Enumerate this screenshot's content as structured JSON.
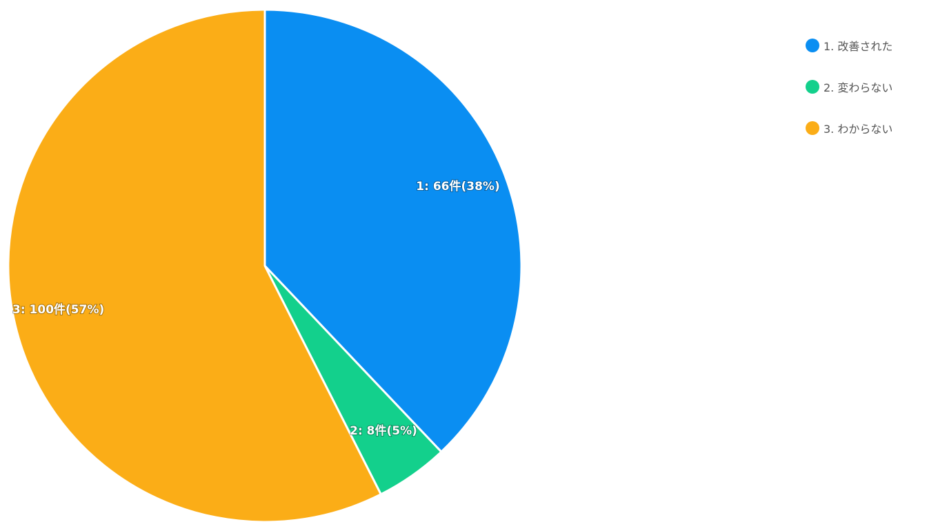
{
  "chart_data": {
    "type": "pie",
    "title": "",
    "start_angle_deg": 0,
    "direction": "clockwise",
    "legend_position": "top-right",
    "slices": [
      {
        "name": "1. 改善された",
        "value": 66,
        "percent": 38,
        "data_label": "1: 66件(38%)",
        "color": "#0a8ef2"
      },
      {
        "name": "2. 変わらない",
        "value": 8,
        "percent": 5,
        "data_label": "2: 8件(5%)",
        "color": "#13d08c"
      },
      {
        "name": "3. わからない",
        "value": 100,
        "percent": 57,
        "data_label": "3: 100件(57%)",
        "color": "#fbad17"
      }
    ]
  }
}
